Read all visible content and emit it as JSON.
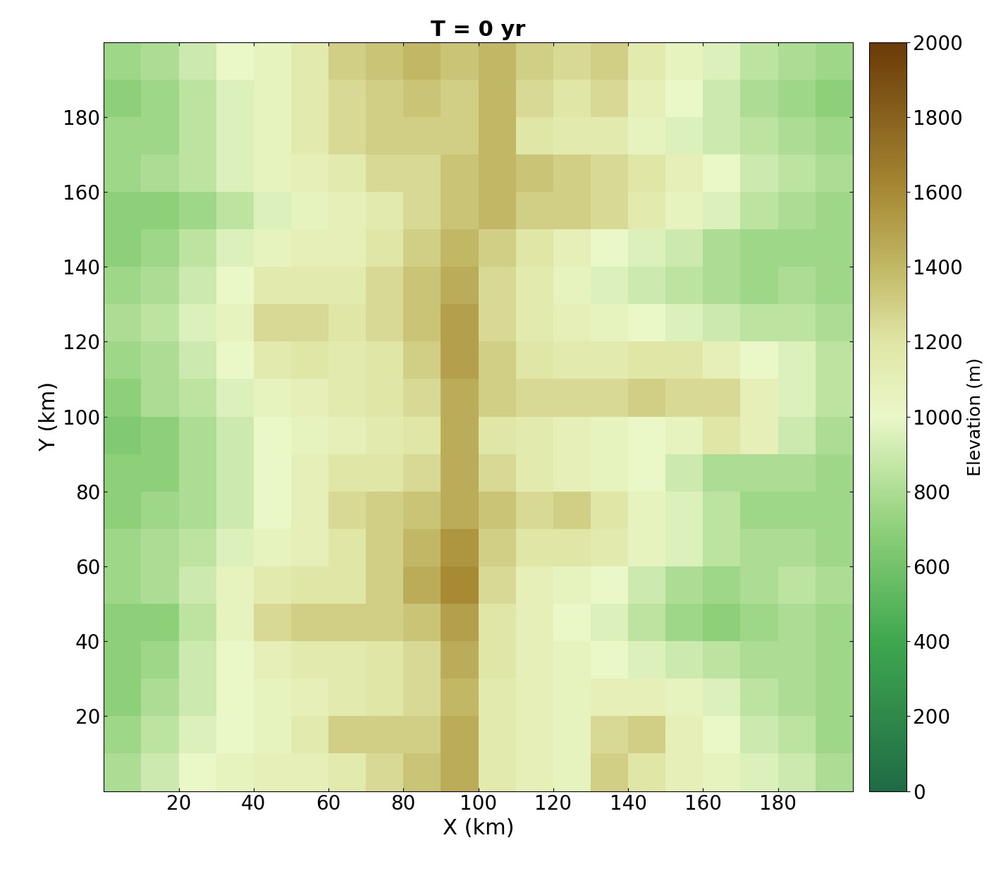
{
  "chart_data": {
    "type": "heatmap",
    "title": "T = 0 yr",
    "x_label": "X (km)",
    "y_label": "Y (km)",
    "x": [
      0,
      10,
      20,
      30,
      40,
      50,
      60,
      70,
      80,
      90,
      100,
      110,
      120,
      130,
      140,
      150,
      160,
      170,
      180,
      190,
      200
    ],
    "y": [
      0,
      10,
      20,
      30,
      40,
      50,
      60,
      70,
      80,
      90,
      100,
      110,
      120,
      130,
      140,
      150,
      160,
      170,
      180,
      190,
      200
    ],
    "cells": [
      [
        800,
        900,
        1000,
        1050,
        1100,
        1100,
        1150,
        1250,
        1350,
        1450,
        1150,
        1100,
        1050,
        1300,
        1200,
        1100,
        1050,
        950,
        900,
        800
      ],
      [
        750,
        850,
        950,
        1000,
        1050,
        1150,
        1300,
        1300,
        1300,
        1450,
        1150,
        1100,
        1050,
        1250,
        1300,
        1100,
        1000,
        900,
        850,
        750
      ],
      [
        700,
        800,
        900,
        1000,
        1050,
        1100,
        1150,
        1200,
        1250,
        1400,
        1150,
        1100,
        1050,
        1100,
        1100,
        1050,
        950,
        850,
        800,
        750
      ],
      [
        700,
        750,
        900,
        1000,
        1100,
        1150,
        1150,
        1200,
        1250,
        1450,
        1200,
        1100,
        1050,
        1000,
        950,
        900,
        850,
        800,
        800,
        750
      ],
      [
        700,
        700,
        850,
        1050,
        1250,
        1300,
        1300,
        1300,
        1350,
        1500,
        1200,
        1100,
        1000,
        950,
        850,
        750,
        700,
        750,
        800,
        750
      ],
      [
        750,
        800,
        900,
        1050,
        1150,
        1200,
        1200,
        1300,
        1450,
        1600,
        1250,
        1100,
        1050,
        1000,
        900,
        800,
        750,
        800,
        850,
        800
      ],
      [
        750,
        800,
        850,
        950,
        1050,
        1100,
        1200,
        1300,
        1400,
        1550,
        1300,
        1200,
        1200,
        1150,
        1050,
        950,
        850,
        800,
        800,
        750
      ],
      [
        700,
        750,
        800,
        900,
        1000,
        1100,
        1250,
        1300,
        1350,
        1450,
        1350,
        1250,
        1300,
        1200,
        1050,
        950,
        850,
        750,
        750,
        750
      ],
      [
        700,
        700,
        800,
        900,
        1000,
        1100,
        1200,
        1200,
        1250,
        1450,
        1250,
        1150,
        1100,
        1050,
        1000,
        900,
        800,
        800,
        800,
        750
      ],
      [
        650,
        700,
        800,
        900,
        1000,
        1050,
        1100,
        1150,
        1200,
        1450,
        1200,
        1150,
        1100,
        1050,
        1000,
        1050,
        1200,
        1100,
        900,
        800
      ],
      [
        700,
        800,
        850,
        950,
        1050,
        1100,
        1150,
        1200,
        1250,
        1450,
        1300,
        1250,
        1250,
        1250,
        1300,
        1250,
        1250,
        1100,
        950,
        850
      ],
      [
        750,
        800,
        900,
        1000,
        1150,
        1200,
        1150,
        1200,
        1300,
        1500,
        1300,
        1200,
        1150,
        1150,
        1200,
        1200,
        1100,
        1000,
        950,
        850
      ],
      [
        800,
        850,
        950,
        1050,
        1250,
        1250,
        1200,
        1250,
        1350,
        1500,
        1250,
        1150,
        1100,
        1050,
        1000,
        950,
        900,
        850,
        850,
        800
      ],
      [
        750,
        800,
        900,
        1000,
        1150,
        1150,
        1150,
        1250,
        1350,
        1450,
        1250,
        1150,
        1050,
        950,
        900,
        850,
        800,
        750,
        800,
        750
      ],
      [
        700,
        750,
        850,
        950,
        1050,
        1100,
        1100,
        1200,
        1300,
        1400,
        1300,
        1200,
        1100,
        1000,
        950,
        900,
        800,
        750,
        750,
        750
      ],
      [
        700,
        700,
        750,
        850,
        950,
        1050,
        1100,
        1150,
        1250,
        1350,
        1400,
        1300,
        1300,
        1250,
        1150,
        1050,
        950,
        850,
        800,
        750
      ],
      [
        750,
        800,
        850,
        950,
        1050,
        1100,
        1150,
        1250,
        1250,
        1350,
        1400,
        1350,
        1300,
        1250,
        1200,
        1100,
        1000,
        900,
        850,
        800
      ],
      [
        750,
        750,
        850,
        950,
        1050,
        1150,
        1250,
        1300,
        1300,
        1300,
        1400,
        1200,
        1150,
        1150,
        1050,
        950,
        900,
        850,
        800,
        750
      ],
      [
        700,
        750,
        850,
        950,
        1050,
        1150,
        1250,
        1300,
        1350,
        1300,
        1400,
        1250,
        1200,
        1250,
        1100,
        1000,
        900,
        800,
        750,
        700
      ],
      [
        750,
        800,
        900,
        1000,
        1050,
        1150,
        1300,
        1350,
        1400,
        1350,
        1400,
        1300,
        1250,
        1300,
        1150,
        1050,
        950,
        850,
        800,
        750
      ]
    ],
    "xlim": [
      0,
      200
    ],
    "ylim": [
      0,
      200
    ],
    "xticks": [
      20,
      40,
      60,
      80,
      100,
      120,
      140,
      160,
      180
    ],
    "yticks": [
      20,
      40,
      60,
      80,
      100,
      120,
      140,
      160,
      180
    ],
    "colorbar": {
      "label": "Elevation (m)",
      "range": [
        0,
        2000
      ],
      "ticks": [
        0,
        200,
        400,
        600,
        800,
        1000,
        1200,
        1400,
        1600,
        1800,
        2000
      ]
    }
  }
}
